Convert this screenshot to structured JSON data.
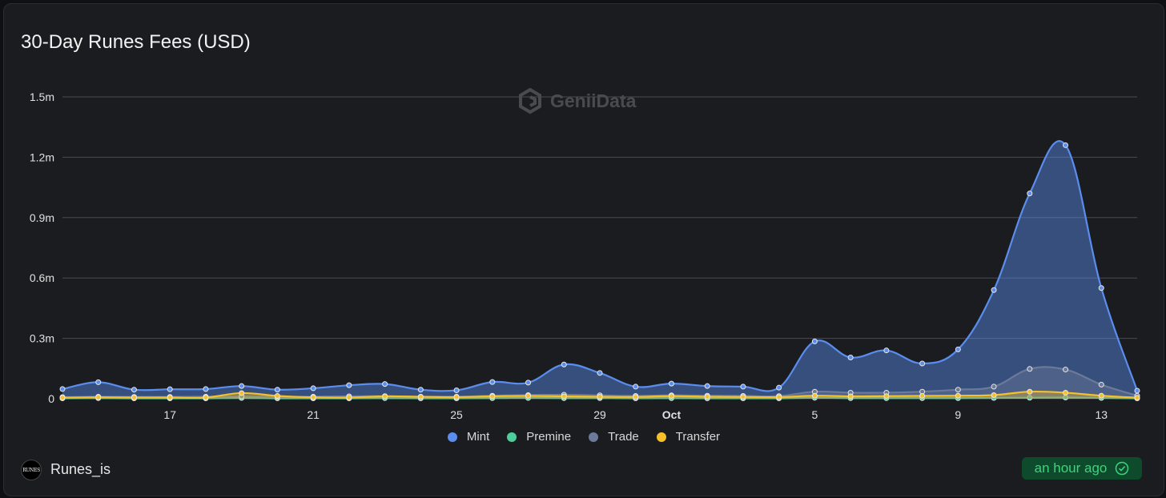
{
  "title": "30-Day Runes Fees (USD)",
  "watermark": "GeniiData",
  "footer": {
    "logo_text": "RUNES",
    "name": "Runes_is",
    "updated": "an hour ago"
  },
  "colors": {
    "Mint": "#5b8def",
    "Premine": "#4ccf9b",
    "Trade": "#6b7a99",
    "Transfer": "#f5c02b"
  },
  "chart_data": {
    "type": "area",
    "title": "30-Day Runes Fees (USD)",
    "xlabel": "",
    "ylabel": "",
    "ylim": [
      0,
      1500000
    ],
    "yticks": [
      {
        "value": 0,
        "label": "0"
      },
      {
        "value": 300000,
        "label": "0.3m"
      },
      {
        "value": 600000,
        "label": "0.6m"
      },
      {
        "value": 900000,
        "label": "0.9m"
      },
      {
        "value": 1200000,
        "label": "1.2m"
      },
      {
        "value": 1500000,
        "label": "1.5m"
      }
    ],
    "x": [
      "Sep 14",
      "Sep 15",
      "Sep 16",
      "Sep 17",
      "Sep 18",
      "Sep 19",
      "Sep 20",
      "Sep 21",
      "Sep 22",
      "Sep 23",
      "Sep 24",
      "Sep 25",
      "Sep 26",
      "Sep 27",
      "Sep 28",
      "Sep 29",
      "Sep 30",
      "Oct 1",
      "Oct 2",
      "Oct 3",
      "Oct 4",
      "Oct 5",
      "Oct 6",
      "Oct 7",
      "Oct 8",
      "Oct 9",
      "Oct 10",
      "Oct 11",
      "Oct 12",
      "Oct 13",
      "Oct 14"
    ],
    "xticks": [
      {
        "index": 3,
        "label": "17",
        "bold": false
      },
      {
        "index": 7,
        "label": "21",
        "bold": false
      },
      {
        "index": 11,
        "label": "25",
        "bold": false
      },
      {
        "index": 15,
        "label": "29",
        "bold": false
      },
      {
        "index": 17,
        "label": "Oct",
        "bold": true
      },
      {
        "index": 21,
        "label": "5",
        "bold": false
      },
      {
        "index": 25,
        "label": "9",
        "bold": false
      },
      {
        "index": 29,
        "label": "13",
        "bold": false
      }
    ],
    "grid": true,
    "legend_position": "bottom",
    "series": [
      {
        "name": "Mint",
        "values": [
          48000,
          82000,
          45000,
          47000,
          48000,
          63000,
          45000,
          52000,
          67000,
          73000,
          45000,
          42000,
          83000,
          80000,
          170000,
          128000,
          60000,
          75000,
          63000,
          60000,
          55000,
          285000,
          205000,
          240000,
          175000,
          245000,
          540000,
          1020000,
          1260000,
          550000,
          40000
        ]
      },
      {
        "name": "Premine",
        "values": [
          2000,
          3000,
          2000,
          2000,
          2000,
          4000,
          2000,
          2000,
          2000,
          3000,
          2000,
          2000,
          3000,
          4000,
          3000,
          3000,
          2000,
          3000,
          2000,
          2000,
          2000,
          5000,
          3000,
          3000,
          3000,
          3000,
          4000,
          5000,
          6000,
          4000,
          2000
        ]
      },
      {
        "name": "Trade",
        "values": [
          8000,
          10000,
          9000,
          9000,
          10000,
          12000,
          9000,
          10000,
          12000,
          13000,
          10000,
          10000,
          15000,
          18000,
          20000,
          17000,
          14000,
          17000,
          15000,
          14000,
          13000,
          35000,
          30000,
          30000,
          35000,
          45000,
          60000,
          148000,
          145000,
          70000,
          15000
        ]
      },
      {
        "name": "Transfer",
        "values": [
          5000,
          7000,
          6000,
          6000,
          6000,
          28000,
          14000,
          7000,
          6000,
          12000,
          10000,
          8000,
          12000,
          14000,
          12000,
          10000,
          9000,
          13000,
          10000,
          9000,
          8000,
          15000,
          12000,
          13000,
          14000,
          15000,
          18000,
          35000,
          30000,
          15000,
          5000
        ]
      }
    ]
  }
}
